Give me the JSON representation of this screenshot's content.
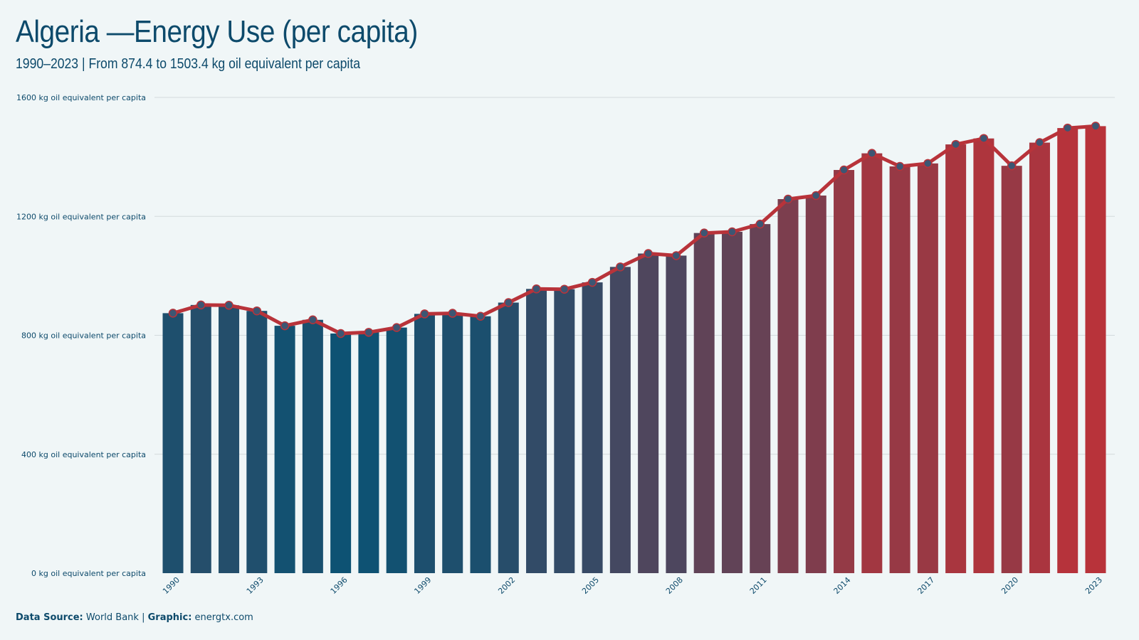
{
  "header": {
    "title": "Algeria —Energy Use (per capita)",
    "subtitle": "1990–2023 | From 874.4 to 1503.4 kg oil equivalent per capita"
  },
  "footer": {
    "source_label": "Data Source:",
    "source_value": "World Bank",
    "separator": "|",
    "graphic_label": "Graphic:",
    "graphic_value": "energtx.com"
  },
  "colors": {
    "background": "#f0f6f7",
    "low": "#0d5273",
    "high": "#b8333a",
    "line": "#b8333a",
    "marker_fill": "#3d5673",
    "text": "#0d4a6b",
    "grid": "#d3dadc"
  },
  "chart_data": {
    "type": "bar",
    "title": "Algeria —Energy Use (per capita)",
    "subtitle": "1990–2023 | From 874.4 to 1503.4 kg oil equivalent per capita",
    "xlabel": "",
    "ylabel": "",
    "ylim": [
      0,
      1600
    ],
    "y_ticks": [
      0,
      400,
      800,
      1200,
      1600
    ],
    "y_tick_labels": [
      "0 kg oil equivalent per capita",
      "400 kg oil equivalent per capita",
      "800 kg oil equivalent per capita",
      "1200 kg oil equivalent per capita",
      "1600 kg oil equivalent per capita"
    ],
    "x_tick_labels": [
      "1990",
      "1993",
      "1996",
      "1999",
      "2002",
      "2005",
      "2008",
      "2011",
      "2014",
      "2017",
      "2020",
      "2023"
    ],
    "grid": true,
    "legend": "none",
    "overlay_line": true,
    "categories": [
      "1990",
      "1991",
      "1992",
      "1993",
      "1994",
      "1995",
      "1996",
      "1997",
      "1998",
      "1999",
      "2000",
      "2001",
      "2002",
      "2003",
      "2004",
      "2005",
      "2006",
      "2007",
      "2008",
      "2009",
      "2010",
      "2011",
      "2012",
      "2013",
      "2014",
      "2015",
      "2016",
      "2017",
      "2018",
      "2019",
      "2020",
      "2021",
      "2022",
      "2023"
    ],
    "values": [
      874.4,
      902,
      901,
      882,
      832,
      852,
      806,
      810,
      826,
      872,
      874,
      864,
      910,
      956,
      955,
      978,
      1030,
      1075,
      1068,
      1144,
      1148,
      1174,
      1258,
      1270,
      1356,
      1412,
      1368,
      1378,
      1442,
      1462,
      1370,
      1448,
      1497,
      1503.4
    ]
  }
}
